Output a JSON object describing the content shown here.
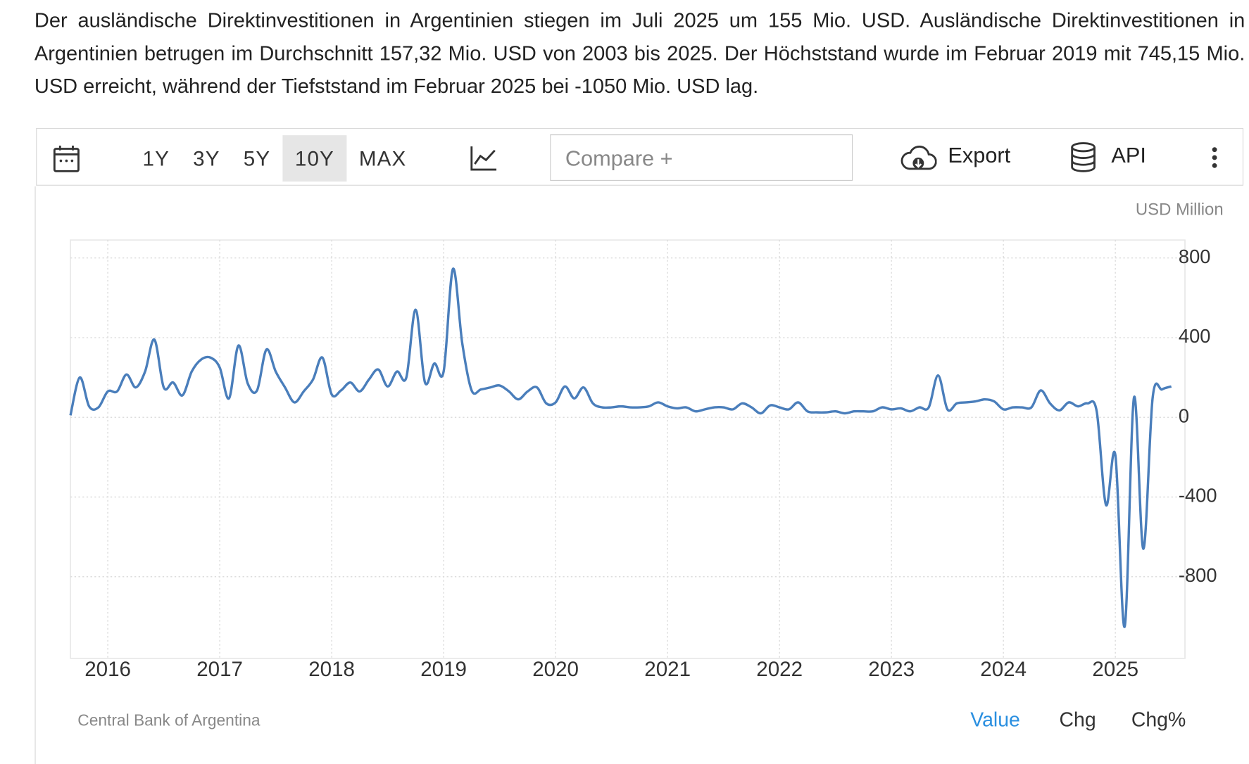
{
  "description": "Der ausländische Direktinvestitionen in Argentinien stiegen im Juli 2025 um 155 Mio. USD. Ausländische Direktinvestitionen in Argentinien betrugen im Durchschnitt 157,32 Mio. USD von 2003 bis 2025. Der Höchststand wurde im Februar 2019 mit 745,15 Mio. USD erreicht, während der Tiefststand im Februar 2025 bei -1050 Mio. USD lag.",
  "toolbar": {
    "ranges": [
      "1Y",
      "3Y",
      "5Y",
      "10Y",
      "MAX"
    ],
    "compare": "Compare +",
    "export": "Export",
    "api": "API"
  },
  "chart_data": {
    "type": "line",
    "unit": "USD Million",
    "categories": [
      null,
      null,
      null,
      null,
      "2016",
      null,
      null,
      null,
      null,
      null,
      null,
      null,
      null,
      null,
      null,
      null,
      "2017",
      null,
      null,
      null,
      null,
      null,
      null,
      null,
      null,
      null,
      null,
      null,
      "2018",
      null,
      null,
      null,
      null,
      null,
      null,
      null,
      null,
      null,
      null,
      null,
      "2019",
      null,
      null,
      null,
      null,
      null,
      null,
      null,
      null,
      null,
      null,
      null,
      "2020",
      null,
      null,
      null,
      null,
      null,
      null,
      null,
      null,
      null,
      null,
      null,
      "2021",
      null,
      null,
      null,
      null,
      null,
      null,
      null,
      null,
      null,
      null,
      null,
      "2022",
      null,
      null,
      null,
      null,
      null,
      null,
      null,
      null,
      null,
      null,
      null,
      "2023",
      null,
      null,
      null,
      null,
      null,
      null,
      null,
      null,
      null,
      null,
      null,
      "2024",
      null,
      null,
      null,
      null,
      null,
      null,
      null,
      null,
      null,
      null,
      null,
      "2025",
      null,
      null,
      null,
      null,
      null,
      null
    ],
    "series": [
      {
        "name": "Value",
        "color": "#4a7ebb",
        "values": [
          10,
          200,
          55,
          50,
          130,
          130,
          215,
          150,
          230,
          390,
          150,
          175,
          110,
          230,
          290,
          300,
          250,
          95,
          360,
          170,
          135,
          340,
          230,
          150,
          75,
          130,
          190,
          300,
          115,
          135,
          175,
          130,
          190,
          240,
          155,
          230,
          200,
          540,
          175,
          270,
          230,
          745.15,
          370,
          135,
          140,
          150,
          160,
          130,
          90,
          130,
          150,
          70,
          75,
          155,
          95,
          150,
          70,
          50,
          50,
          55,
          50,
          50,
          55,
          75,
          55,
          45,
          50,
          30,
          40,
          50,
          50,
          40,
          70,
          50,
          20,
          60,
          50,
          40,
          75,
          30,
          25,
          25,
          30,
          20,
          30,
          30,
          30,
          50,
          40,
          45,
          30,
          50,
          50,
          210,
          40,
          70,
          75,
          80,
          90,
          80,
          40,
          50,
          50,
          50,
          135,
          70,
          35,
          75,
          55,
          70,
          30,
          -440,
          -190,
          -1050,
          100,
          -660,
          100,
          140,
          155
        ]
      }
    ],
    "ylim": [
      -1210,
      890
    ],
    "yticks": [
      -800,
      -400,
      0,
      400,
      800
    ],
    "grid": true
  },
  "source": "Central Bank of Argentina",
  "tabs": [
    "Value",
    "Chg",
    "Chg%"
  ]
}
